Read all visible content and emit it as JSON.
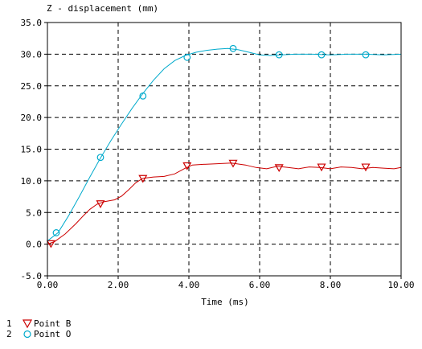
{
  "chart_data": {
    "type": "line",
    "title": "Z - displacement (mm)",
    "xlabel": "Time (ms)",
    "ylabel": "",
    "xlim": [
      0,
      10
    ],
    "ylim": [
      -5,
      35
    ],
    "xticks": [
      0,
      2,
      4,
      6,
      8,
      10
    ],
    "xtick_labels": [
      "0.00",
      "2.00",
      "4.00",
      "6.00",
      "8.00",
      "10.00"
    ],
    "yticks": [
      -5,
      0,
      5,
      10,
      15,
      20,
      25,
      30,
      35
    ],
    "ytick_labels": [
      "-5.0",
      "0.0",
      "5.0",
      "10.0",
      "15.0",
      "20.0",
      "25.0",
      "30.0",
      "35.0"
    ],
    "grid": true,
    "series": [
      {
        "id": "1",
        "name": "Point B",
        "color": "#cc0000",
        "marker": "triangle-down",
        "x": [
          0,
          0.2,
          0.5,
          0.8,
          1.0,
          1.2,
          1.4,
          1.6,
          1.9,
          2.1,
          2.3,
          2.5,
          2.7,
          3.0,
          3.3,
          3.6,
          3.9,
          4.1,
          4.4,
          4.8,
          5.2,
          5.6,
          5.9,
          6.2,
          6.5,
          6.8,
          7.1,
          7.4,
          7.7,
          8.0,
          8.3,
          8.6,
          8.9,
          9.2,
          9.5,
          9.8,
          10.0
        ],
        "y": [
          0,
          0.4,
          1.6,
          3.2,
          4.4,
          5.5,
          6.3,
          6.7,
          7.0,
          7.6,
          8.6,
          9.7,
          10.4,
          10.6,
          10.7,
          11.1,
          12.0,
          12.5,
          12.6,
          12.7,
          12.8,
          12.5,
          12.1,
          11.9,
          12.3,
          12.1,
          11.9,
          12.2,
          12.1,
          11.9,
          12.2,
          12.1,
          11.9,
          12.1,
          12.0,
          11.9,
          12.1
        ],
        "markers_x": [
          0.1,
          1.5,
          2.7,
          3.95,
          5.25,
          6.55,
          7.75,
          9.0
        ],
        "markers_y": [
          0.1,
          6.4,
          10.4,
          12.4,
          12.8,
          12.1,
          12.2,
          12.2
        ]
      },
      {
        "id": "2",
        "name": "Point O",
        "color": "#00aacc",
        "marker": "circle",
        "x": [
          0,
          0.3,
          0.6,
          0.9,
          1.2,
          1.5,
          1.8,
          2.1,
          2.4,
          2.7,
          3.0,
          3.3,
          3.6,
          3.9,
          4.2,
          4.5,
          4.8,
          5.1,
          5.4,
          5.7,
          6.0,
          6.3,
          6.6,
          7.0,
          7.5,
          8.0,
          8.5,
          9.0,
          9.5,
          10.0
        ],
        "y": [
          0.5,
          1.8,
          4.5,
          7.5,
          10.6,
          13.6,
          16.4,
          19.0,
          21.5,
          23.8,
          25.9,
          27.7,
          29.0,
          29.8,
          30.3,
          30.6,
          30.8,
          30.9,
          30.7,
          30.3,
          29.9,
          29.8,
          29.9,
          30.0,
          30.0,
          29.9,
          30.0,
          30.0,
          29.9,
          30.0
        ],
        "markers_x": [
          0.25,
          1.5,
          2.7,
          3.95,
          5.25,
          6.55,
          7.75,
          9.0
        ],
        "markers_y": [
          1.8,
          13.7,
          23.4,
          29.5,
          30.9,
          29.9,
          29.9,
          29.9
        ]
      }
    ],
    "legend": {
      "placement": "bottom-left"
    }
  }
}
